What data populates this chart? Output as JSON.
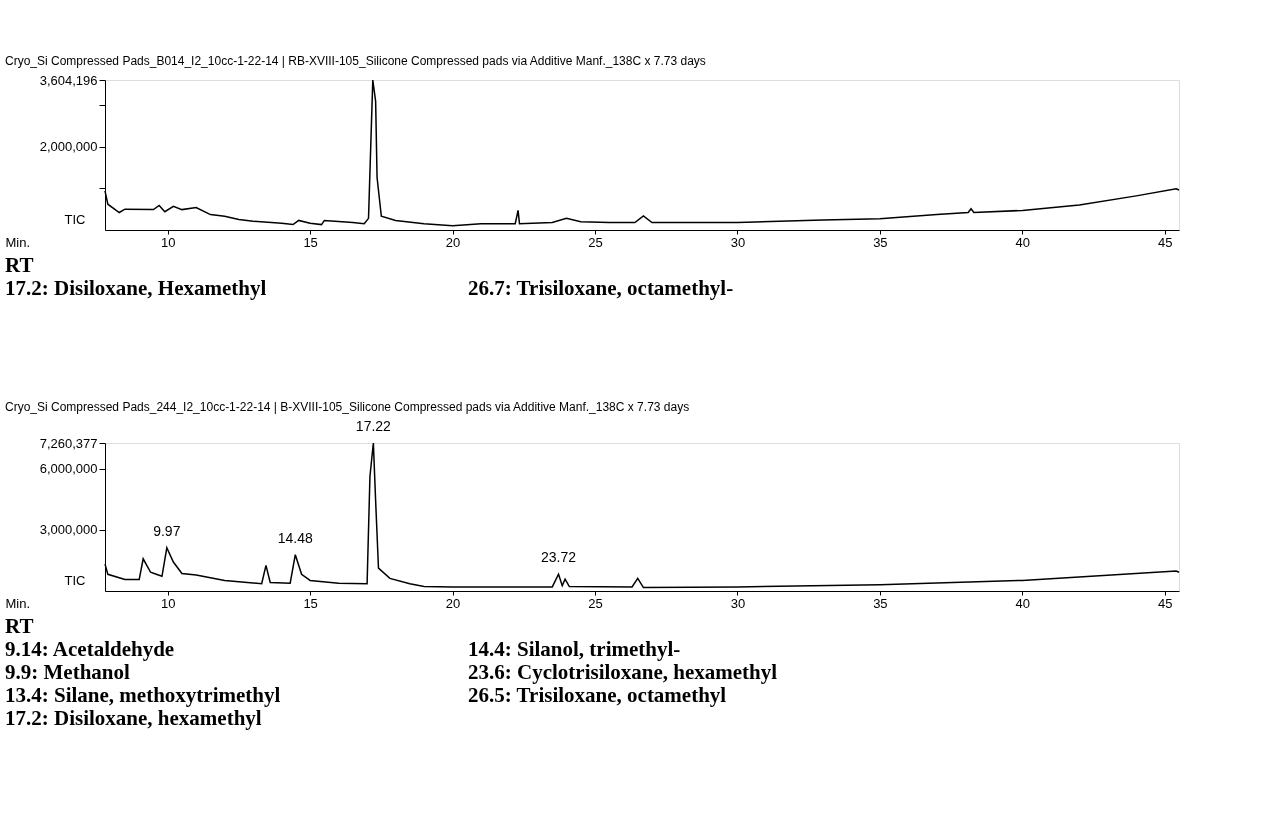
{
  "chart_data": [
    {
      "type": "line",
      "title": "Cryo_Si Compressed Pads_B014_I2_10cc-1-22-14 | RB-XVIII-105_Silicone Compressed pads via Additive Manf._138C x 7.73 days",
      "xlabel": "Min.",
      "ylabel": "TIC",
      "marker": "none",
      "line_style": "solid",
      "grid": false,
      "xlim": [
        7.8,
        45.5
      ],
      "ylim": [
        0,
        3604196
      ],
      "xticks": [
        10,
        15,
        20,
        25,
        30,
        35,
        40,
        45
      ],
      "yticks": [
        {
          "value": 1000000,
          "label": null
        },
        {
          "value": 2000000,
          "label": "2,000,000"
        },
        {
          "value": 3000000,
          "label": null
        },
        {
          "value": 3604196,
          "label": "3,604,196"
        }
      ],
      "series": [
        {
          "color": "#000000",
          "x": [
            7.8,
            7.9,
            8.3,
            8.5,
            9.5,
            9.7,
            9.9,
            10.2,
            10.5,
            11,
            11.5,
            12,
            12.5,
            13,
            14,
            14.4,
            14.6,
            15,
            15.4,
            15.5,
            16.5,
            16.9,
            17.05,
            17.2,
            17.3,
            17.35,
            17.5,
            18,
            19,
            20,
            21,
            22.2,
            22.3,
            22.35,
            23.5,
            24,
            24.5,
            25.5,
            26.4,
            26.7,
            27,
            30,
            33,
            35,
            37,
            38.1,
            38.2,
            38.3,
            40,
            42,
            44,
            45.4,
            45.5
          ],
          "values": [
            940000,
            620000,
            420000,
            500000,
            490000,
            590000,
            440000,
            570000,
            490000,
            540000,
            370000,
            330000,
            250000,
            210000,
            160000,
            130000,
            230000,
            160000,
            130000,
            230000,
            180000,
            150000,
            280000,
            3604196,
            3090000,
            1260000,
            330000,
            230000,
            150000,
            100000,
            150000,
            150000,
            470000,
            150000,
            180000,
            280000,
            200000,
            180000,
            180000,
            340000,
            180000,
            180000,
            240000,
            270000,
            370000,
            420000,
            510000,
            420000,
            470000,
            600000,
            820000,
            990000,
            960000
          ]
        }
      ],
      "annotations": [
        "RT",
        "17.2: Disiloxane, Hexamethyl",
        "26.7: Trisiloxane, octamethyl-"
      ]
    },
    {
      "type": "line",
      "title": "Cryo_Si Compressed Pads_244_I2_10cc-1-22-14 | B-XVIII-105_Silicone Compressed pads via Additive Manf._138C x 7.73 days",
      "xlabel": "Min.",
      "ylabel": "TIC",
      "marker": "none",
      "line_style": "solid",
      "grid": false,
      "xlim": [
        7.8,
        45.5
      ],
      "ylim": [
        0,
        7260377
      ],
      "xticks": [
        10,
        15,
        20,
        25,
        30,
        35,
        40,
        45
      ],
      "yticks": [
        {
          "value": 3000000,
          "label": "3,000,000"
        },
        {
          "value": 6000000,
          "label": "6,000,000"
        },
        {
          "value": 7260377,
          "label": "7,260,377"
        }
      ],
      "series": [
        {
          "color": "#000000",
          "x": [
            7.8,
            7.9,
            8.5,
            9.0,
            9.14,
            9.4,
            9.6,
            9.8,
            9.97,
            10.2,
            10.5,
            11,
            12,
            13.3,
            13.45,
            13.6,
            14.3,
            14.48,
            14.7,
            15,
            16,
            17.0,
            17.1,
            17.22,
            17.3,
            17.4,
            17.8,
            18.5,
            19,
            20,
            23.5,
            23.72,
            23.85,
            23.95,
            24.1,
            26.3,
            26.5,
            26.7,
            30,
            35,
            40,
            45.4,
            45.5
          ],
          "values": [
            1320000,
            820000,
            560000,
            560000,
            1580000,
            920000,
            820000,
            720000,
            2120000,
            1420000,
            860000,
            780000,
            520000,
            360000,
            1260000,
            420000,
            380000,
            1780000,
            820000,
            520000,
            380000,
            360000,
            5620000,
            7260377,
            4420000,
            1120000,
            620000,
            360000,
            220000,
            200000,
            200000,
            820000,
            260000,
            580000,
            220000,
            200000,
            620000,
            170000,
            200000,
            310000,
            520000,
            980000,
            920000
          ]
        }
      ],
      "annotations": [
        {
          "text": "9.97",
          "x": 9.97,
          "y": 2120000
        },
        {
          "text": "14.48",
          "x": 14.48,
          "y": 1780000
        },
        {
          "text": "17.22",
          "x": 17.22,
          "y": 7260377
        },
        {
          "text": "23.72",
          "x": 23.72,
          "y": 820000
        },
        "RT",
        "9.14: Acetaldehyde",
        "9.9: Methanol",
        "13.4: Silane, methoxytrimethyl",
        "17.2: Disiloxane, hexamethyl",
        "14.4: Silanol, trimethyl-",
        "23.6: Cyclotrisiloxane, hexamethyl",
        "26.5: Trisiloxane, octamethyl"
      ]
    }
  ]
}
